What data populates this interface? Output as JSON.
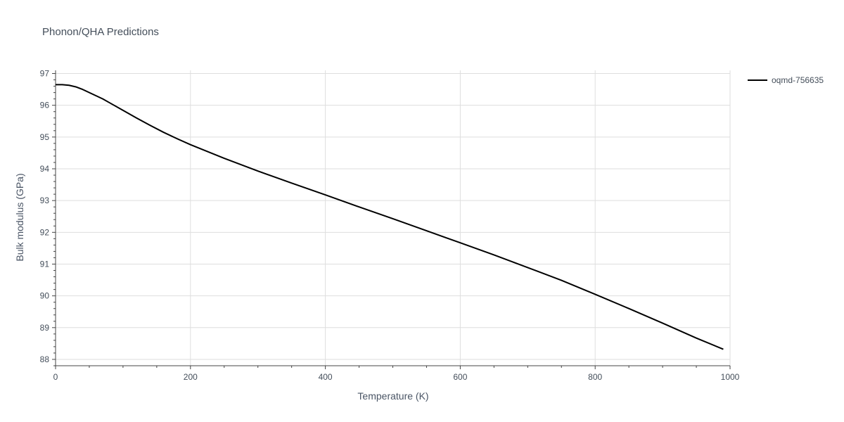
{
  "chart_data": {
    "type": "line",
    "title": "Phonon/QHA Predictions",
    "xlabel": "Temperature (K)",
    "ylabel": "Bulk modulus (GPa)",
    "xlim": [
      0,
      1000
    ],
    "ylim": [
      87.8,
      97.1
    ],
    "x_ticks": [
      0,
      200,
      400,
      600,
      800,
      1000
    ],
    "y_ticks": [
      88,
      89,
      90,
      91,
      92,
      93,
      94,
      95,
      96,
      97
    ],
    "grid": true,
    "legend_position": "top-right",
    "series": [
      {
        "name": "oqmd-756635",
        "color": "#000000",
        "x": [
          0,
          10,
          20,
          30,
          40,
          50,
          60,
          70,
          80,
          100,
          120,
          140,
          160,
          180,
          200,
          250,
          300,
          350,
          400,
          450,
          500,
          550,
          600,
          650,
          700,
          750,
          800,
          850,
          900,
          950,
          990
        ],
        "y": [
          96.65,
          96.65,
          96.63,
          96.58,
          96.5,
          96.4,
          96.3,
          96.2,
          96.08,
          95.84,
          95.6,
          95.37,
          95.15,
          94.95,
          94.76,
          94.33,
          93.93,
          93.55,
          93.18,
          92.8,
          92.43,
          92.05,
          91.67,
          91.29,
          90.89,
          90.49,
          90.05,
          89.6,
          89.14,
          88.67,
          88.32
        ]
      }
    ]
  }
}
